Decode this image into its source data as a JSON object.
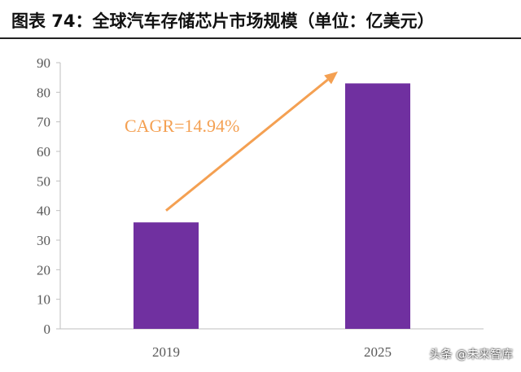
{
  "title": "图表 74：全球汽车存储芯片市场规模（单位：亿美元）",
  "watermark": "头条 @未来智库",
  "colors": {
    "bar": "#7030a0",
    "arrow": "#f4a052",
    "axis": "#bfbfbf",
    "tick_text": "#595959"
  },
  "chart_data": {
    "type": "bar",
    "categories": [
      "2019",
      "2025"
    ],
    "values": [
      36,
      83
    ],
    "title": "",
    "xlabel": "",
    "ylabel": "",
    "ylim": [
      0,
      90
    ],
    "yticks": [
      0,
      10,
      20,
      30,
      40,
      50,
      60,
      70,
      80,
      90
    ],
    "grid": false,
    "annotation": {
      "text": "CAGR=14.94%",
      "arrow_from": [
        "2019",
        40
      ],
      "arrow_to": [
        "2025",
        87
      ]
    }
  }
}
